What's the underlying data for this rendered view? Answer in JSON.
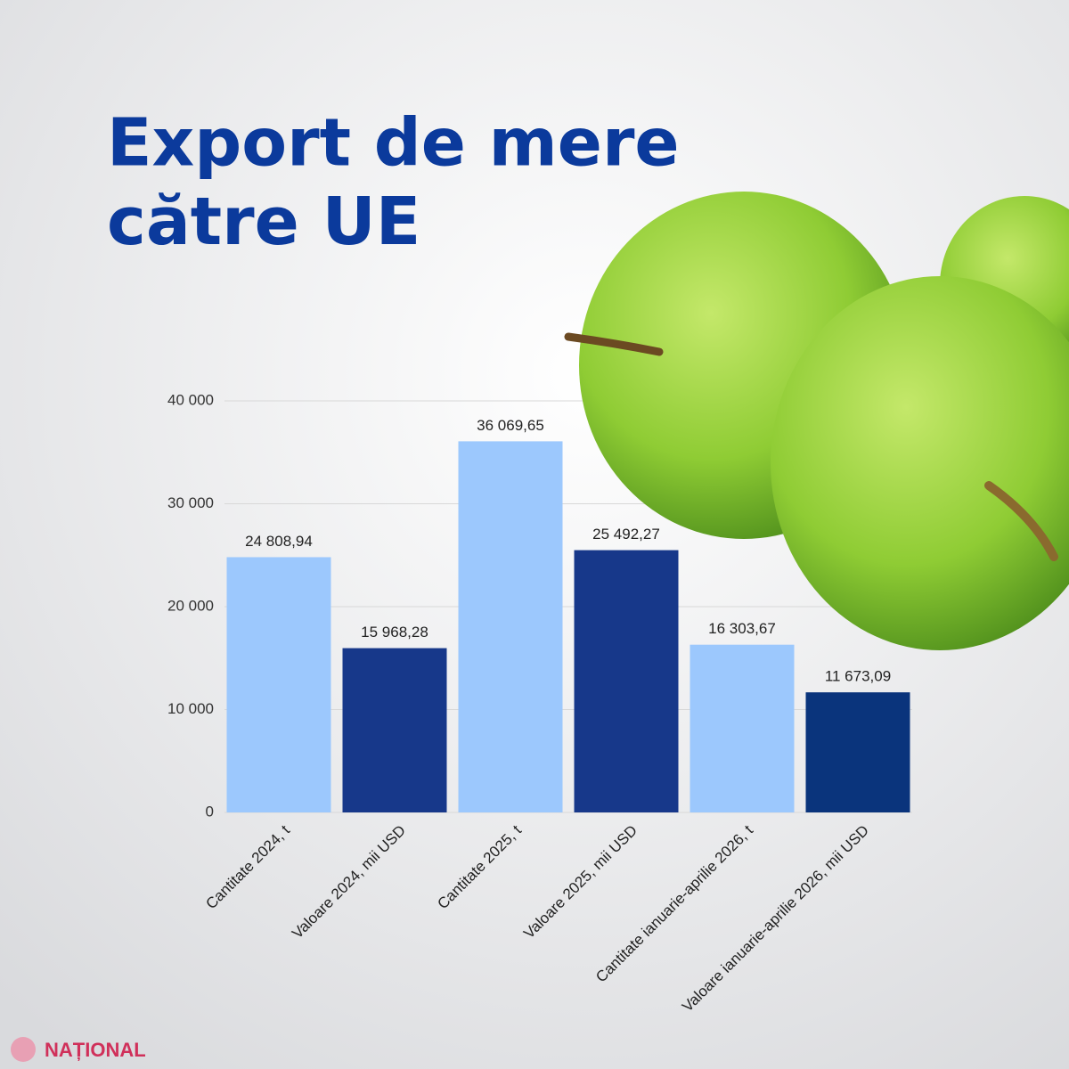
{
  "brand": "NAȚIONAL",
  "chart_data": {
    "type": "bar",
    "title": "Export de mere către UE",
    "categories": [
      "Cantitate 2024, t",
      "Valoare 2024, mii USD",
      "Cantitate 2025, t",
      "Valoare 2025, mii USD",
      "Cantitate ianuarie-aprilie 2026, t",
      "Valoare ianuarie-aprilie 2026, mii USD"
    ],
    "values": [
      24808.94,
      15968.28,
      36069.65,
      25492.27,
      16303.67,
      11673.09
    ],
    "value_labels": [
      "24 808,94",
      "15 968,28",
      "36 069,65",
      "25 492,27",
      "16 303,67",
      "11 673,09"
    ],
    "colors": [
      "#9cc8fd",
      "#17388a",
      "#9cc8fd",
      "#17388a",
      "#9cc8fd",
      "#0a347c"
    ],
    "ylim": [
      0,
      40000
    ],
    "yticks": [
      0,
      {
        "value": 10000,
        "label": "10 000"
      },
      {
        "value": 20000,
        "label": "20 000"
      },
      {
        "value": 30000,
        "label": "30 000"
      },
      {
        "value": 40000,
        "label": "40 000"
      }
    ],
    "grid": true
  }
}
